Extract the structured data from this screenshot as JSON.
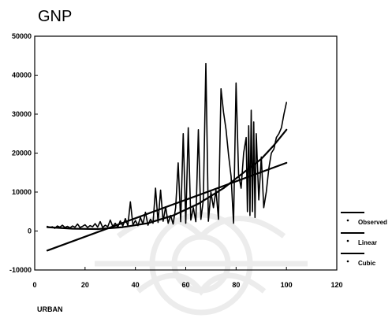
{
  "chart_data": {
    "type": "line",
    "title": "GNP",
    "xlabel": "URBAN",
    "ylabel": "",
    "xlim": [
      0,
      120
    ],
    "ylim": [
      -10000,
      50000
    ],
    "xticks": [
      0,
      20,
      40,
      60,
      80,
      100,
      120
    ],
    "yticks": [
      -10000,
      0,
      10000,
      20000,
      30000,
      40000,
      50000
    ],
    "xtick_labels": [
      "0",
      "20",
      "40",
      "60",
      "80",
      "100",
      "120"
    ],
    "ytick_labels": [
      "-10000",
      "0",
      "10000",
      "20000",
      "30000",
      "40000",
      "50000"
    ],
    "legend_position": "right",
    "grid": false,
    "series": [
      {
        "name": "Observed",
        "style": "line",
        "color": "#000000",
        "points": [
          [
            5,
            1200
          ],
          [
            6,
            900
          ],
          [
            7,
            1100
          ],
          [
            8,
            700
          ],
          [
            9,
            1300
          ],
          [
            10,
            1000
          ],
          [
            11,
            1500
          ],
          [
            12,
            900
          ],
          [
            13,
            1200
          ],
          [
            14,
            800
          ],
          [
            15,
            1300
          ],
          [
            16,
            1000
          ],
          [
            17,
            1800
          ],
          [
            18,
            900
          ],
          [
            19,
            1200
          ],
          [
            20,
            1600
          ],
          [
            21,
            900
          ],
          [
            22,
            1400
          ],
          [
            23,
            1100
          ],
          [
            24,
            1900
          ],
          [
            25,
            1000
          ],
          [
            26,
            2400
          ],
          [
            27,
            900
          ],
          [
            28,
            1500
          ],
          [
            29,
            1100
          ],
          [
            30,
            2800
          ],
          [
            31,
            1200
          ],
          [
            32,
            2000
          ],
          [
            33,
            1000
          ],
          [
            34,
            2600
          ],
          [
            35,
            1300
          ],
          [
            36,
            3200
          ],
          [
            37,
            1400
          ],
          [
            38,
            7500
          ],
          [
            39,
            1600
          ],
          [
            40,
            2700
          ],
          [
            41,
            1400
          ],
          [
            42,
            3500
          ],
          [
            43,
            1800
          ],
          [
            44,
            4800
          ],
          [
            45,
            1500
          ],
          [
            46,
            3000
          ],
          [
            47,
            2000
          ],
          [
            48,
            11000
          ],
          [
            49,
            2200
          ],
          [
            50,
            10500
          ],
          [
            51,
            2500
          ],
          [
            52,
            6200
          ],
          [
            53,
            2000
          ],
          [
            54,
            4000
          ],
          [
            55,
            1800
          ],
          [
            56,
            6000
          ],
          [
            57,
            17500
          ],
          [
            58,
            2400
          ],
          [
            59,
            25000
          ],
          [
            60,
            2000
          ],
          [
            61,
            26500
          ],
          [
            62,
            2800
          ],
          [
            63,
            6000
          ],
          [
            64,
            2400
          ],
          [
            65,
            26000
          ],
          [
            66,
            3000
          ],
          [
            67,
            8000
          ],
          [
            68,
            43000
          ],
          [
            69,
            2500
          ],
          [
            70,
            10000
          ],
          [
            71,
            6000
          ],
          [
            72,
            10500
          ],
          [
            73,
            3000
          ],
          [
            74,
            36500
          ],
          [
            75,
            30500
          ],
          [
            76,
            26000
          ],
          [
            77,
            19500
          ],
          [
            78,
            14000
          ],
          [
            79,
            2000
          ],
          [
            80,
            38000
          ],
          [
            81,
            14500
          ],
          [
            82,
            11000
          ],
          [
            83,
            20000
          ],
          [
            84,
            24000
          ],
          [
            84.5,
            5000
          ],
          [
            85,
            27000
          ],
          [
            85.5,
            4000
          ],
          [
            86,
            31000
          ],
          [
            86.5,
            5000
          ],
          [
            87,
            28000
          ],
          [
            87.5,
            3500
          ],
          [
            88,
            25000
          ],
          [
            89,
            8000
          ],
          [
            90,
            19000
          ],
          [
            91,
            6000
          ],
          [
            92,
            10000
          ],
          [
            93,
            16000
          ],
          [
            94,
            20000
          ],
          [
            95,
            21000
          ],
          [
            96,
            24000
          ],
          [
            97,
            25000
          ],
          [
            98,
            26500
          ],
          [
            99,
            30000
          ],
          [
            100,
            33000
          ]
        ]
      },
      {
        "name": "Linear",
        "style": "line",
        "color": "#000000",
        "points": [
          [
            5,
            -5000
          ],
          [
            100,
            17500
          ]
        ]
      },
      {
        "name": "Cubic",
        "style": "line",
        "color": "#000000",
        "points": [
          [
            5,
            1000
          ],
          [
            15,
            600
          ],
          [
            25,
            500
          ],
          [
            35,
            1000
          ],
          [
            45,
            2000
          ],
          [
            55,
            4000
          ],
          [
            65,
            7000
          ],
          [
            75,
            11000
          ],
          [
            85,
            16000
          ],
          [
            90,
            18500
          ],
          [
            95,
            22000
          ],
          [
            100,
            26000
          ]
        ]
      }
    ]
  }
}
